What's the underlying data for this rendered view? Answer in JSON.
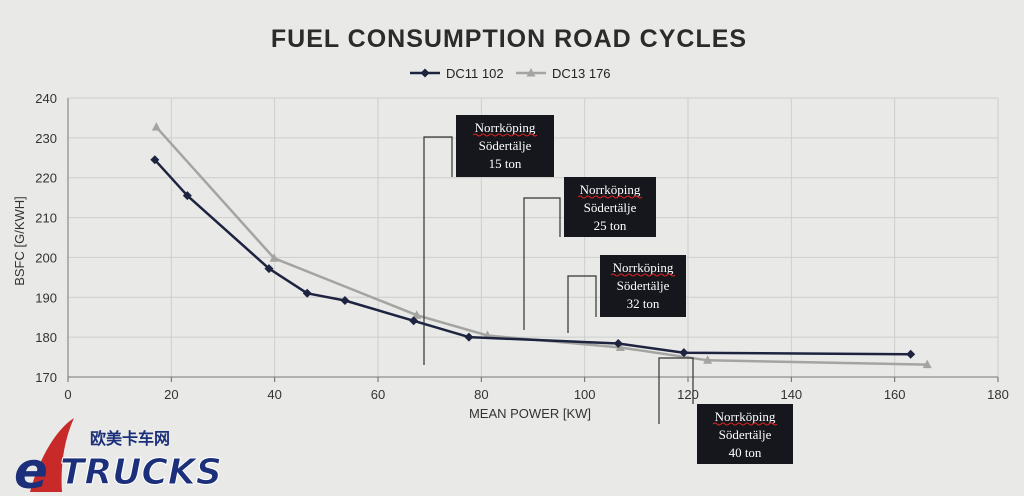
{
  "chart_data": {
    "type": "line",
    "title": "FUEL CONSUMPTION ROAD CYCLES",
    "xlabel": "MEAN POWER [KW]",
    "ylabel": "BSFC [G/KWH]",
    "xlim": [
      0,
      180
    ],
    "ylim": [
      170,
      240
    ],
    "xticks": [
      0,
      20,
      40,
      60,
      80,
      100,
      120,
      140,
      160,
      180
    ],
    "yticks": [
      170,
      180,
      190,
      200,
      210,
      220,
      230,
      240
    ],
    "grid": true,
    "legend_position": "top-center",
    "series": [
      {
        "name": "DC11 102",
        "color": "#1e2340",
        "marker": "diamond",
        "points": [
          [
            16.8,
            224.5
          ],
          [
            23.1,
            215.5
          ],
          [
            38.9,
            197.2
          ],
          [
            46.3,
            191.0
          ],
          [
            53.6,
            189.2
          ],
          [
            66.9,
            184.1
          ],
          [
            77.6,
            180.0
          ],
          [
            106.5,
            178.4
          ],
          [
            119.2,
            176.1
          ],
          [
            163.1,
            175.7
          ]
        ]
      },
      {
        "name": "DC13 176",
        "color": "#a4a4a1",
        "marker": "triangle",
        "points": [
          [
            17.1,
            232.7
          ],
          [
            39.9,
            199.8
          ],
          [
            67.5,
            185.5
          ],
          [
            81.2,
            180.4
          ],
          [
            106.9,
            177.4
          ],
          [
            123.8,
            174.2
          ],
          [
            166.3,
            173.1
          ]
        ]
      }
    ],
    "annotations": [
      {
        "lines": [
          "Norrköping",
          "Södertälje",
          "15 ton"
        ]
      },
      {
        "lines": [
          "Norrköping",
          "Södertälje",
          "25 ton"
        ]
      },
      {
        "lines": [
          "Norrköping",
          "Södertälje",
          "32 ton"
        ]
      },
      {
        "lines": [
          "Norrköping",
          "Södertälje",
          "40 ton"
        ]
      }
    ]
  },
  "watermark": {
    "brand": "TRUCKS",
    "letter": "e",
    "chinese": "欧美卡车网"
  }
}
